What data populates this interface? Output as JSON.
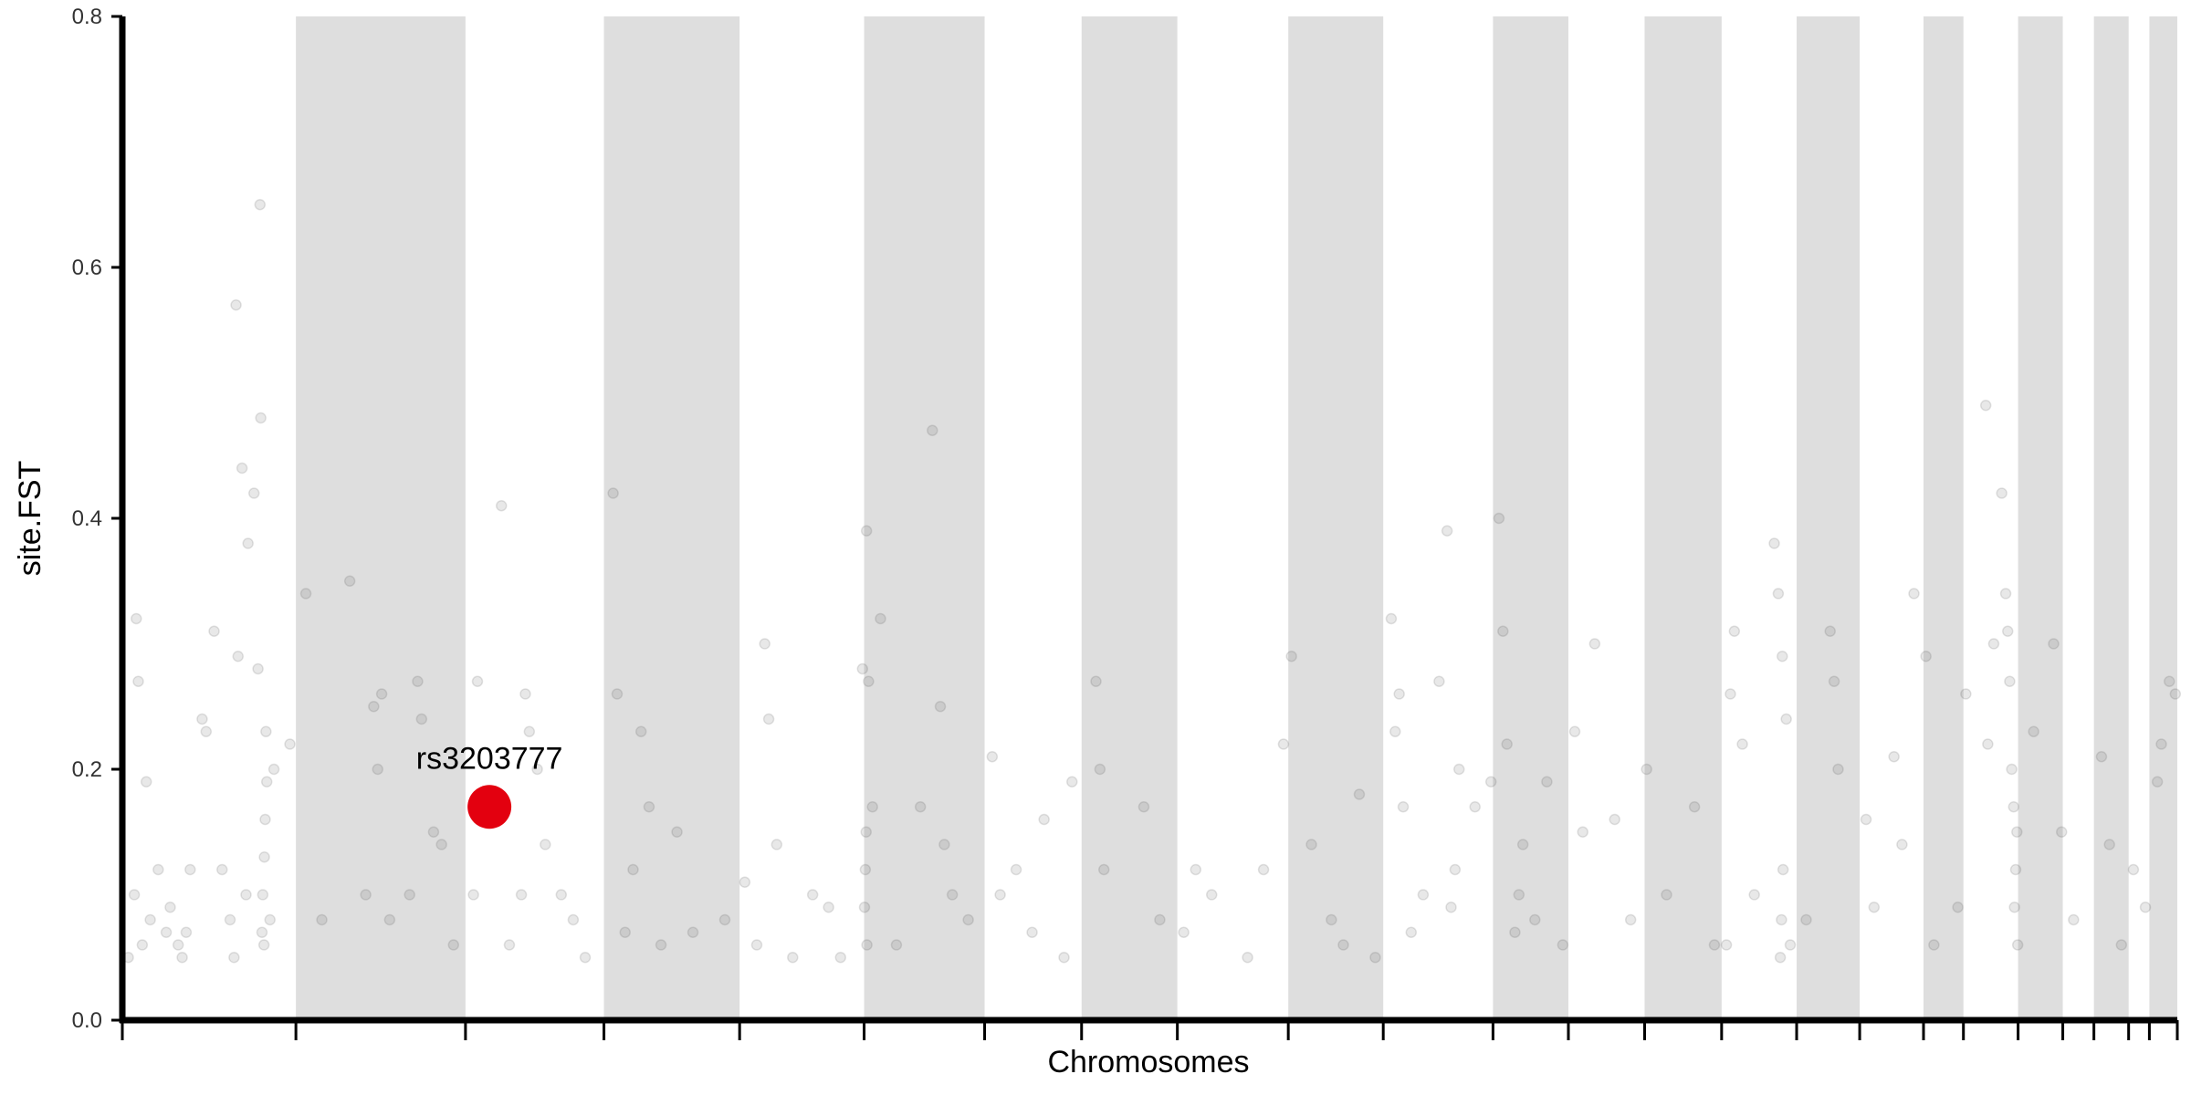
{
  "chart_data": {
    "type": "scatter",
    "title": "",
    "xlabel": "Chromosomes",
    "ylabel": "site.FST",
    "ylim": [
      0,
      0.8
    ],
    "yticks": [
      "0.0",
      "0.2",
      "0.4",
      "0.6",
      "0.8"
    ],
    "grid": false,
    "legend": "none",
    "x_axis_labels_shown": false,
    "chromosome_boundaries": [
      0,
      4.35,
      8.6,
      12.07,
      15.47,
      18.59,
      21.61,
      24.04,
      26.44,
      29.22,
      31.6,
      34.35,
      36.24,
      38.15,
      40.08,
      41.96,
      43.54,
      45.14,
      46.14,
      47.51,
      48.63,
      49.41,
      50.28,
      50.8,
      51.5
    ],
    "shaded_chromosomes": [
      1,
      3,
      5,
      7,
      9,
      11,
      13,
      15,
      17,
      19,
      21,
      23
    ],
    "highlight": {
      "label": "rs3203777",
      "x": 9.2,
      "y": 0.17
    },
    "point_alpha": 0.12,
    "points": [
      [
        0.15,
        0.05
      ],
      [
        0.3,
        0.1
      ],
      [
        0.35,
        0.32
      ],
      [
        0.4,
        0.27
      ],
      [
        0.5,
        0.06
      ],
      [
        0.6,
        0.19
      ],
      [
        0.7,
        0.08
      ],
      [
        0.9,
        0.12
      ],
      [
        1.2,
        0.09
      ],
      [
        1.4,
        0.06
      ],
      [
        1.5,
        0.05
      ],
      [
        1.6,
        0.07
      ],
      [
        1.7,
        0.12
      ],
      [
        2.0,
        0.24
      ],
      [
        2.1,
        0.23
      ],
      [
        2.3,
        0.31
      ],
      [
        2.5,
        0.12
      ],
      [
        2.7,
        0.08
      ],
      [
        2.8,
        0.05
      ],
      [
        2.85,
        0.57
      ],
      [
        2.9,
        0.29
      ],
      [
        3.0,
        0.44
      ],
      [
        3.1,
        0.1
      ],
      [
        3.15,
        0.38
      ],
      [
        3.3,
        0.42
      ],
      [
        3.4,
        0.28
      ],
      [
        3.45,
        0.65
      ],
      [
        3.47,
        0.48
      ],
      [
        3.5,
        0.07
      ],
      [
        3.55,
        0.06
      ],
      [
        3.6,
        0.23
      ],
      [
        3.7,
        0.08
      ],
      [
        3.8,
        0.2
      ],
      [
        4.2,
        0.22
      ],
      [
        4.6,
        0.34
      ],
      [
        5.0,
        0.08
      ],
      [
        5.7,
        0.35
      ],
      [
        6.1,
        0.1
      ],
      [
        6.3,
        0.25
      ],
      [
        6.4,
        0.2
      ],
      [
        6.5,
        0.26
      ],
      [
        6.7,
        0.08
      ],
      [
        7.2,
        0.1
      ],
      [
        7.4,
        0.27
      ],
      [
        7.5,
        0.24
      ],
      [
        7.8,
        0.15
      ],
      [
        8.0,
        0.14
      ],
      [
        8.3,
        0.06
      ],
      [
        8.8,
        0.1
      ],
      [
        8.9,
        0.27
      ],
      [
        9.5,
        0.41
      ],
      [
        9.7,
        0.06
      ],
      [
        10.0,
        0.1
      ],
      [
        10.1,
        0.26
      ],
      [
        10.2,
        0.23
      ],
      [
        10.4,
        0.2
      ],
      [
        10.6,
        0.14
      ],
      [
        11.0,
        0.1
      ],
      [
        11.3,
        0.08
      ],
      [
        11.6,
        0.05
      ],
      [
        12.3,
        0.42
      ],
      [
        12.4,
        0.26
      ],
      [
        12.6,
        0.07
      ],
      [
        12.8,
        0.12
      ],
      [
        13.0,
        0.23
      ],
      [
        13.2,
        0.17
      ],
      [
        13.5,
        0.06
      ],
      [
        13.9,
        0.15
      ],
      [
        14.3,
        0.07
      ],
      [
        15.1,
        0.08
      ],
      [
        15.6,
        0.11
      ],
      [
        15.9,
        0.06
      ],
      [
        16.1,
        0.3
      ],
      [
        16.2,
        0.24
      ],
      [
        16.4,
        0.14
      ],
      [
        16.8,
        0.05
      ],
      [
        17.3,
        0.1
      ],
      [
        17.7,
        0.09
      ],
      [
        18.0,
        0.05
      ],
      [
        18.55,
        0.28
      ],
      [
        18.65,
        0.39
      ],
      [
        18.7,
        0.27
      ],
      [
        18.8,
        0.17
      ],
      [
        19.0,
        0.32
      ],
      [
        19.4,
        0.06
      ],
      [
        20.0,
        0.17
      ],
      [
        20.3,
        0.47
      ],
      [
        20.5,
        0.25
      ],
      [
        20.6,
        0.14
      ],
      [
        20.8,
        0.1
      ],
      [
        21.2,
        0.08
      ],
      [
        21.8,
        0.21
      ],
      [
        22.0,
        0.1
      ],
      [
        22.4,
        0.12
      ],
      [
        22.8,
        0.07
      ],
      [
        23.1,
        0.16
      ],
      [
        23.6,
        0.05
      ],
      [
        23.8,
        0.19
      ],
      [
        24.4,
        0.27
      ],
      [
        24.5,
        0.2
      ],
      [
        24.6,
        0.12
      ],
      [
        25.6,
        0.17
      ],
      [
        26.0,
        0.08
      ],
      [
        26.6,
        0.07
      ],
      [
        26.9,
        0.12
      ],
      [
        27.3,
        0.1
      ],
      [
        28.2,
        0.05
      ],
      [
        28.6,
        0.12
      ],
      [
        29.1,
        0.22
      ],
      [
        29.3,
        0.29
      ],
      [
        29.8,
        0.14
      ],
      [
        30.3,
        0.08
      ],
      [
        30.6,
        0.06
      ],
      [
        31.0,
        0.18
      ],
      [
        31.4,
        0.05
      ],
      [
        31.8,
        0.32
      ],
      [
        31.9,
        0.23
      ],
      [
        32.0,
        0.26
      ],
      [
        32.1,
        0.17
      ],
      [
        32.3,
        0.07
      ],
      [
        32.6,
        0.1
      ],
      [
        33.0,
        0.27
      ],
      [
        33.2,
        0.39
      ],
      [
        33.5,
        0.2
      ],
      [
        33.9,
        0.17
      ],
      [
        34.3,
        0.19
      ],
      [
        34.5,
        0.4
      ],
      [
        34.6,
        0.31
      ],
      [
        34.7,
        0.22
      ],
      [
        35.1,
        0.14
      ],
      [
        35.4,
        0.08
      ],
      [
        35.7,
        0.19
      ],
      [
        36.1,
        0.06
      ],
      [
        36.4,
        0.23
      ],
      [
        36.6,
        0.15
      ],
      [
        36.9,
        0.3
      ],
      [
        37.4,
        0.16
      ],
      [
        37.8,
        0.08
      ],
      [
        38.2,
        0.2
      ],
      [
        38.7,
        0.1
      ],
      [
        39.4,
        0.17
      ],
      [
        39.9,
        0.06
      ],
      [
        40.2,
        0.06
      ],
      [
        40.3,
        0.26
      ],
      [
        40.4,
        0.31
      ],
      [
        40.6,
        0.22
      ],
      [
        40.9,
        0.1
      ],
      [
        41.4,
        0.38
      ],
      [
        41.5,
        0.34
      ],
      [
        41.6,
        0.29
      ],
      [
        41.7,
        0.24
      ],
      [
        41.8,
        0.06
      ],
      [
        42.2,
        0.08
      ],
      [
        42.8,
        0.31
      ],
      [
        42.9,
        0.27
      ],
      [
        43.0,
        0.2
      ],
      [
        43.7,
        0.16
      ],
      [
        43.9,
        0.09
      ],
      [
        44.4,
        0.21
      ],
      [
        44.6,
        0.14
      ],
      [
        44.9,
        0.34
      ],
      [
        45.2,
        0.29
      ],
      [
        45.4,
        0.06
      ],
      [
        46.0,
        0.09
      ],
      [
        46.2,
        0.26
      ],
      [
        46.7,
        0.49
      ],
      [
        46.75,
        0.22
      ],
      [
        46.9,
        0.3
      ],
      [
        47.1,
        0.42
      ],
      [
        47.2,
        0.34
      ],
      [
        47.25,
        0.31
      ],
      [
        47.3,
        0.27
      ],
      [
        47.35,
        0.2
      ],
      [
        47.4,
        0.17
      ],
      [
        47.45,
        0.12
      ],
      [
        47.5,
        0.06
      ],
      [
        47.9,
        0.23
      ],
      [
        48.4,
        0.3
      ],
      [
        48.6,
        0.15
      ],
      [
        48.9,
        0.08
      ],
      [
        49.6,
        0.21
      ],
      [
        49.8,
        0.14
      ],
      [
        50.1,
        0.06
      ],
      [
        50.4,
        0.12
      ],
      [
        50.7,
        0.09
      ],
      [
        51.0,
        0.19
      ],
      [
        51.1,
        0.22
      ],
      [
        51.3,
        0.27
      ],
      [
        51.45,
        0.26
      ],
      [
        1.1,
        0.07
      ],
      [
        3.52,
        0.1
      ],
      [
        3.56,
        0.13
      ],
      [
        3.58,
        0.16
      ],
      [
        3.62,
        0.19
      ],
      [
        41.55,
        0.05
      ],
      [
        41.58,
        0.08
      ],
      [
        41.62,
        0.12
      ],
      [
        47.42,
        0.09
      ],
      [
        47.48,
        0.15
      ],
      [
        33.3,
        0.09
      ],
      [
        33.4,
        0.12
      ],
      [
        34.9,
        0.07
      ],
      [
        35.0,
        0.1
      ],
      [
        18.6,
        0.09
      ],
      [
        18.62,
        0.12
      ],
      [
        18.64,
        0.15
      ],
      [
        18.66,
        0.06
      ]
    ]
  }
}
